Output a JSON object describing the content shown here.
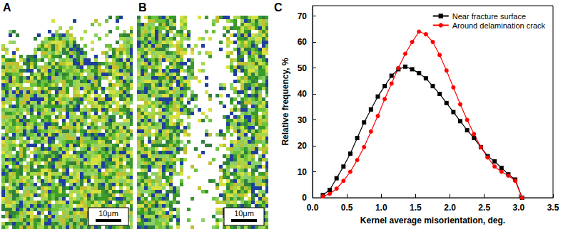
{
  "panels": [
    {
      "label": "A",
      "scale_bar": "10μm"
    },
    {
      "label": "B",
      "scale_bar": "10μm"
    },
    {
      "label": "C"
    }
  ],
  "chart_data": {
    "type": "line",
    "xlabel": "Kernel average misorientation, deg.",
    "ylabel": "Relative frequency, %",
    "x": [
      0.15,
      0.25,
      0.35,
      0.45,
      0.55,
      0.65,
      0.75,
      0.85,
      0.95,
      1.05,
      1.15,
      1.25,
      1.35,
      1.45,
      1.55,
      1.65,
      1.75,
      1.85,
      1.95,
      2.05,
      2.15,
      2.25,
      2.35,
      2.45,
      2.55,
      2.65,
      2.75,
      2.85,
      2.95,
      3.05
    ],
    "series": [
      {
        "name": "Near fracture surface",
        "color": "#000000",
        "marker": "square",
        "line_style": "solid",
        "values": [
          1,
          3,
          7.5,
          12,
          17,
          23,
          29,
          34,
          39,
          43,
          47,
          49.5,
          50.5,
          49.5,
          48,
          46,
          43,
          40,
          36.5,
          33,
          29.5,
          26,
          23,
          19.5,
          16,
          14,
          11.5,
          9,
          7,
          0
        ]
      },
      {
        "name": "Around delamination crack",
        "color": "#ff0000",
        "marker": "circle",
        "line_style": "solid",
        "values": [
          0.5,
          1.5,
          3.5,
          6.5,
          10,
          14.5,
          19.5,
          25.5,
          31.5,
          38,
          44,
          50,
          55.5,
          60,
          64,
          63,
          60,
          55,
          49,
          42.5,
          36,
          30,
          24.5,
          19.5,
          15.5,
          12,
          10,
          8.5,
          6.5,
          0
        ]
      }
    ],
    "xlim": [
      0,
      3.5
    ],
    "xticks": [
      {
        "value": 0,
        "label": "0.0"
      },
      0.5,
      {
        "value": 1,
        "label": "1.0"
      },
      1.5,
      {
        "value": 2,
        "label": "2.0"
      },
      2.5,
      {
        "value": 3,
        "label": "3.0"
      },
      3.5
    ],
    "ylim": [
      0,
      74
    ],
    "yticks": [
      0,
      10,
      20,
      30,
      40,
      50,
      60,
      70
    ],
    "grid": false,
    "legend": "upper right"
  }
}
